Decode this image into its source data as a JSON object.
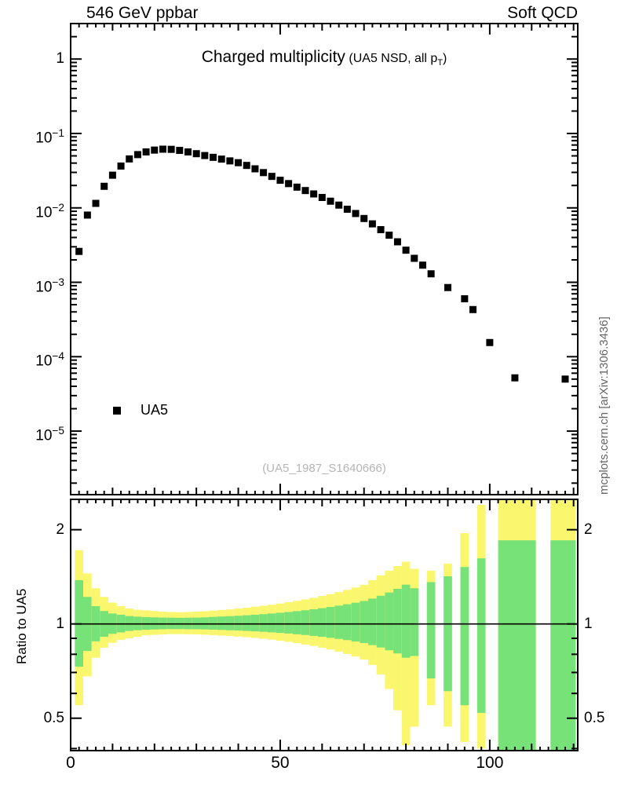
{
  "header": {
    "left": "546 GeV ppbar",
    "right": "Soft QCD"
  },
  "title": {
    "main": "Charged multiplicity",
    "paren_prefix": " (UA5 NSD, all p",
    "subscript": "T",
    "paren_suffix": ")"
  },
  "legend": {
    "label": "UA5"
  },
  "watermark": "(UA5_1987_S1640666)",
  "side_caption": "mcplots.cern.ch [arXiv:1306.3436]",
  "colors": {
    "marker": "#000000",
    "band_outer": "#faf66e",
    "band_inner": "#77e277",
    "watermark": "#b5b5b5",
    "side_caption": "#666666",
    "frame": "#000000"
  },
  "chart_data": [
    {
      "type": "scatter",
      "title": "Charged multiplicity (UA5 NSD, all pT)",
      "xlabel": "",
      "ylabel": "",
      "yscale": "log",
      "xlim": [
        0,
        121
      ],
      "ylim": [
        1.4e-06,
        3
      ],
      "x_major_ticks": [
        0,
        50,
        100
      ],
      "y_major_exponents": [
        0,
        -1,
        -2,
        -3,
        -4,
        -5
      ],
      "legend_position": "lower-left",
      "series": [
        {
          "name": "UA5",
          "marker": "black-square",
          "x": [
            2,
            4,
            6,
            8,
            10,
            12,
            14,
            16,
            18,
            20,
            22,
            24,
            26,
            28,
            30,
            32,
            34,
            36,
            38,
            40,
            42,
            44,
            46,
            48,
            50,
            52,
            54,
            56,
            58,
            60,
            62,
            64,
            66,
            68,
            70,
            72,
            74,
            76,
            78,
            80,
            82,
            84,
            86,
            90,
            94,
            96,
            100,
            106,
            118
          ],
          "y": [
            0.0026,
            0.008,
            0.0115,
            0.0195,
            0.0275,
            0.0365,
            0.0455,
            0.052,
            0.0565,
            0.0598,
            0.0615,
            0.0612,
            0.0592,
            0.0565,
            0.0535,
            0.0505,
            0.0478,
            0.0452,
            0.0428,
            0.0405,
            0.0372,
            0.0335,
            0.0298,
            0.0265,
            0.0235,
            0.0212,
            0.019,
            0.0171,
            0.0154,
            0.0138,
            0.0123,
            0.0109,
            0.0096,
            0.0084,
            0.0072,
            0.0061,
            0.0051,
            0.0043,
            0.0035,
            0.0027,
            0.0021,
            0.0017,
            0.0013,
            0.00085,
            0.0006,
            0.00043,
            0.000155,
            5.2e-05,
            5e-05
          ]
        }
      ]
    },
    {
      "type": "band-ratio",
      "ylabel": "Ratio to UA5",
      "yscale": "log",
      "xlim": [
        0,
        121
      ],
      "ylim": [
        0.394,
        2.5
      ],
      "y_tick_labels": [
        2,
        1,
        0.5
      ],
      "y_minor_ticks": [
        0.4,
        0.6,
        0.7,
        0.8,
        0.9
      ],
      "reference_line": 1,
      "bands": {
        "legend": {
          "outer": "total-uncertainty-yellow",
          "inner": "stat-uncertainty-green"
        },
        "bins": [
          [
            2,
            1,
            0.55,
            1.72,
            0.73,
            1.38
          ],
          [
            4,
            1,
            0.68,
            1.45,
            0.82,
            1.22
          ],
          [
            6,
            1,
            0.78,
            1.3,
            0.88,
            1.14
          ],
          [
            8,
            1,
            0.84,
            1.22,
            0.91,
            1.1
          ],
          [
            10,
            1,
            0.87,
            1.17,
            0.93,
            1.08
          ],
          [
            12,
            1,
            0.89,
            1.14,
            0.94,
            1.07
          ],
          [
            14,
            1,
            0.9,
            1.12,
            0.95,
            1.06
          ],
          [
            16,
            1,
            0.91,
            1.11,
            0.955,
            1.055
          ],
          [
            18,
            1,
            0.92,
            1.105,
            0.958,
            1.052
          ],
          [
            20,
            1,
            0.923,
            1.1,
            0.96,
            1.05
          ],
          [
            22,
            1,
            0.926,
            1.095,
            0.962,
            1.048
          ],
          [
            24,
            1,
            0.928,
            1.092,
            0.963,
            1.047
          ],
          [
            26,
            1,
            0.928,
            1.09,
            0.963,
            1.046
          ],
          [
            28,
            1,
            0.927,
            1.092,
            0.962,
            1.047
          ],
          [
            30,
            1,
            0.926,
            1.095,
            0.962,
            1.048
          ],
          [
            32,
            1,
            0.924,
            1.098,
            0.961,
            1.05
          ],
          [
            34,
            1,
            0.921,
            1.103,
            0.959,
            1.053
          ],
          [
            36,
            1,
            0.918,
            1.108,
            0.957,
            1.056
          ],
          [
            38,
            1,
            0.915,
            1.113,
            0.955,
            1.059
          ],
          [
            40,
            1,
            0.911,
            1.12,
            0.953,
            1.062
          ],
          [
            42,
            1,
            0.907,
            1.127,
            0.95,
            1.066
          ],
          [
            44,
            1,
            0.902,
            1.135,
            0.947,
            1.07
          ],
          [
            46,
            1,
            0.897,
            1.143,
            0.944,
            1.075
          ],
          [
            48,
            1,
            0.891,
            1.152,
            0.94,
            1.08
          ],
          [
            50,
            1,
            0.884,
            1.162,
            0.936,
            1.086
          ],
          [
            52,
            1,
            0.877,
            1.173,
            0.932,
            1.092
          ],
          [
            54,
            1,
            0.869,
            1.185,
            0.927,
            1.099
          ],
          [
            56,
            1,
            0.86,
            1.198,
            0.922,
            1.106
          ],
          [
            58,
            1,
            0.851,
            1.212,
            0.916,
            1.114
          ],
          [
            60,
            1,
            0.84,
            1.228,
            0.91,
            1.123
          ],
          [
            62,
            1,
            0.829,
            1.245,
            0.903,
            1.133
          ],
          [
            64,
            1,
            0.816,
            1.264,
            0.896,
            1.144
          ],
          [
            66,
            1,
            0.802,
            1.285,
            0.888,
            1.156
          ],
          [
            68,
            1,
            0.787,
            1.308,
            0.879,
            1.169
          ],
          [
            70,
            1,
            0.77,
            1.334,
            0.869,
            1.184
          ],
          [
            72,
            1,
            0.74,
            1.38,
            0.856,
            1.205
          ],
          [
            74,
            1,
            0.69,
            1.43,
            0.841,
            1.23
          ],
          [
            76,
            1,
            0.62,
            1.48,
            0.824,
            1.26
          ],
          [
            78,
            1,
            0.53,
            1.53,
            0.805,
            1.295
          ],
          [
            80,
            1,
            0.41,
            1.58,
            0.78,
            1.335
          ],
          [
            82,
            1,
            0.47,
            1.5,
            0.79,
            1.3
          ],
          [
            86,
            1,
            0.55,
            1.48,
            0.67,
            1.36
          ],
          [
            90,
            1,
            0.47,
            1.56,
            0.61,
            1.42
          ],
          [
            94,
            1,
            0.42,
            1.95,
            0.55,
            1.52
          ],
          [
            98,
            1,
            0.4,
            2.4,
            0.52,
            1.62
          ],
          [
            106.5,
            4.5,
            0.394,
            2.5,
            0.394,
            1.85
          ],
          [
            117.5,
            3,
            0.394,
            2.5,
            0.394,
            1.85
          ]
        ]
      }
    }
  ]
}
